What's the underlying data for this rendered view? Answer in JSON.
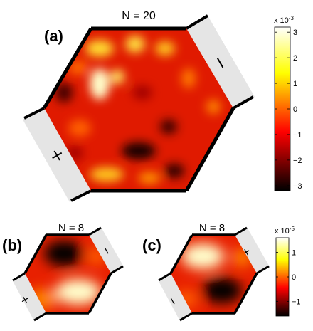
{
  "chart_data": [
    {
      "type": "heatmap",
      "panel": "(a)",
      "title": "N = 20",
      "lead_left_sign": "+",
      "lead_right_sign": "−",
      "colorbar": {
        "exponent_label": "x 10",
        "exponent_power": "-3",
        "ticks": [
          "3",
          "2",
          "1",
          "0",
          "−1",
          "−2",
          "−3"
        ],
        "range": [
          -3.2,
          3.2
        ]
      }
    },
    {
      "type": "heatmap",
      "panel": "(b)",
      "title": "N = 8",
      "lead_left_sign": "+",
      "lead_right_sign": "−"
    },
    {
      "type": "heatmap",
      "panel": "(c)",
      "title": "N = 8",
      "lead_left_sign": "−",
      "lead_right_sign": "+",
      "colorbar": {
        "exponent_label": "x 10",
        "exponent_power": "-5",
        "ticks": [
          "1",
          "0",
          "−1"
        ],
        "range": [
          -1.6,
          1.6
        ]
      }
    }
  ]
}
